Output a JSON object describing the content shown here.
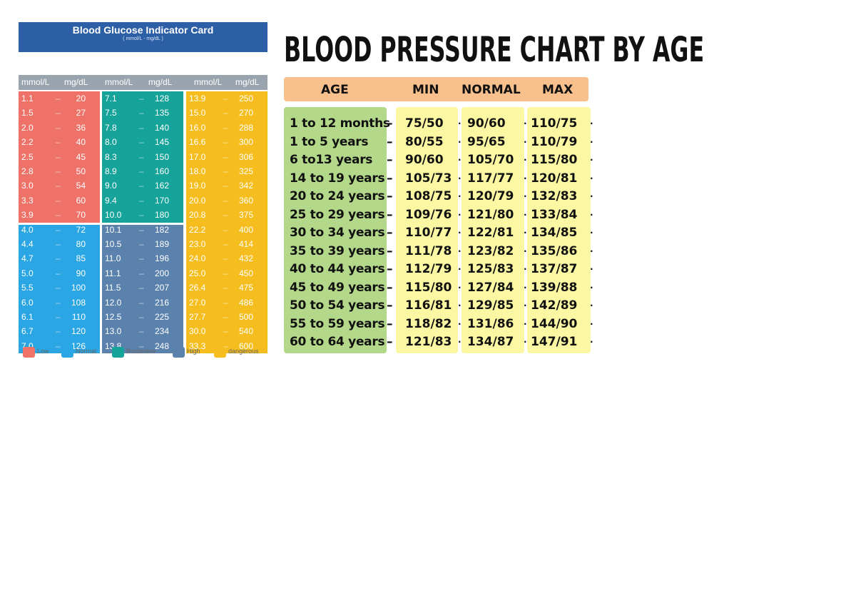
{
  "glucose_card": {
    "title": "Blood Glucose Indicator Card",
    "subtitle": "( mmol/L - mg/dL )",
    "column_headers": [
      "mmol/L",
      "mg/dL",
      "mmol/L",
      "mg/dL",
      "mmol/L",
      "mg/dL"
    ],
    "columns": [
      {
        "blocks": [
          {
            "category": "Low",
            "color": "#ee7268",
            "rows": [
              {
                "mmol": "1.1",
                "mg": "20"
              },
              {
                "mmol": "1.5",
                "mg": "27"
              },
              {
                "mmol": "2.0",
                "mg": "36"
              },
              {
                "mmol": "2.2",
                "mg": "40"
              },
              {
                "mmol": "2.5",
                "mg": "45"
              },
              {
                "mmol": "2.8",
                "mg": "50"
              },
              {
                "mmol": "3.0",
                "mg": "54"
              },
              {
                "mmol": "3.3",
                "mg": "60"
              },
              {
                "mmol": "3.9",
                "mg": "70"
              }
            ]
          },
          {
            "category": "Normal",
            "color": "#2aa6e4",
            "rows": [
              {
                "mmol": "4.0",
                "mg": "72"
              },
              {
                "mmol": "4.4",
                "mg": "80"
              },
              {
                "mmol": "4.7",
                "mg": "85"
              },
              {
                "mmol": "5.0",
                "mg": "90"
              },
              {
                "mmol": "5.5",
                "mg": "100"
              },
              {
                "mmol": "6.0",
                "mg": "108"
              },
              {
                "mmol": "6.1",
                "mg": "110"
              },
              {
                "mmol": "6.7",
                "mg": "120"
              },
              {
                "mmol": "7.0",
                "mg": "126"
              }
            ]
          }
        ]
      },
      {
        "blocks": [
          {
            "category": "Borderline",
            "color": "#16a39a",
            "rows": [
              {
                "mmol": "7.1",
                "mg": "128"
              },
              {
                "mmol": "7.5",
                "mg": "135"
              },
              {
                "mmol": "7.8",
                "mg": "140"
              },
              {
                "mmol": "8.0",
                "mg": "145"
              },
              {
                "mmol": "8.3",
                "mg": "150"
              },
              {
                "mmol": "8.9",
                "mg": "160"
              },
              {
                "mmol": "9.0",
                "mg": "162"
              },
              {
                "mmol": "9.4",
                "mg": "170"
              },
              {
                "mmol": "10.0",
                "mg": "180"
              }
            ]
          },
          {
            "category": "High",
            "color": "#5b82ad",
            "rows": [
              {
                "mmol": "10.1",
                "mg": "182"
              },
              {
                "mmol": "10.5",
                "mg": "189"
              },
              {
                "mmol": "11.0",
                "mg": "196"
              },
              {
                "mmol": "11.1",
                "mg": "200"
              },
              {
                "mmol": "11.5",
                "mg": "207"
              },
              {
                "mmol": "12.0",
                "mg": "216"
              },
              {
                "mmol": "12.5",
                "mg": "225"
              },
              {
                "mmol": "13.0",
                "mg": "234"
              },
              {
                "mmol": "13.8",
                "mg": "248"
              }
            ]
          }
        ]
      },
      {
        "blocks": [
          {
            "category": "dangerous",
            "color": "#f5be1e",
            "rows": [
              {
                "mmol": "13.9",
                "mg": "250"
              },
              {
                "mmol": "15.0",
                "mg": "270"
              },
              {
                "mmol": "16.0",
                "mg": "288"
              },
              {
                "mmol": "16.6",
                "mg": "300"
              },
              {
                "mmol": "17.0",
                "mg": "306"
              },
              {
                "mmol": "18.0",
                "mg": "325"
              },
              {
                "mmol": "19.0",
                "mg": "342"
              },
              {
                "mmol": "20.0",
                "mg": "360"
              },
              {
                "mmol": "20.8",
                "mg": "375"
              },
              {
                "mmol": "22.2",
                "mg": "400"
              },
              {
                "mmol": "23.0",
                "mg": "414"
              },
              {
                "mmol": "24.0",
                "mg": "432"
              },
              {
                "mmol": "25.0",
                "mg": "450"
              },
              {
                "mmol": "26.4",
                "mg": "475"
              },
              {
                "mmol": "27.0",
                "mg": "486"
              },
              {
                "mmol": "27.7",
                "mg": "500"
              },
              {
                "mmol": "30.0",
                "mg": "540"
              },
              {
                "mmol": "33.3",
                "mg": "600"
              }
            ]
          }
        ]
      }
    ],
    "legend": [
      {
        "label": "Low",
        "color": "#ee7268"
      },
      {
        "label": "Normal",
        "color": "#2aa6e4"
      },
      {
        "label": "Borderline",
        "color": "#16a39a"
      },
      {
        "label": "High",
        "color": "#5b82ad"
      },
      {
        "label": "dangerous",
        "color": "#f5be1e"
      }
    ]
  },
  "bp_chart": {
    "title": "BLOOD PRESSURE CHART BY AGE",
    "headers": {
      "age": "AGE",
      "min": "MIN",
      "normal": "NORMAL",
      "max": "MAX"
    },
    "rows": [
      {
        "age": "1 to 12 months",
        "min": "75/50",
        "normal": "90/60",
        "max": "110/75"
      },
      {
        "age": "1 to 5 years",
        "min": "80/55",
        "normal": "95/65",
        "max": "110/79"
      },
      {
        "age": "6 to13 years",
        "min": "90/60",
        "normal": "105/70",
        "max": "115/80"
      },
      {
        "age": "14 to 19 years",
        "min": "105/73",
        "normal": "117/77",
        "max": "120/81"
      },
      {
        "age": "20 to 24 years",
        "min": "108/75",
        "normal": "120/79",
        "max": "132/83"
      },
      {
        "age": "25 to 29 years",
        "min": "109/76",
        "normal": "121/80",
        "max": "133/84"
      },
      {
        "age": "30 to 34 years",
        "min": "110/77",
        "normal": "122/81",
        "max": "134/85"
      },
      {
        "age": "35 to 39 years",
        "min": "111/78",
        "normal": "123/82",
        "max": "135/86"
      },
      {
        "age": "40 to 44 years",
        "min": "112/79",
        "normal": "125/83",
        "max": "137/87"
      },
      {
        "age": "45 to 49 years",
        "min": "115/80",
        "normal": "127/84",
        "max": "139/88"
      },
      {
        "age": "50 to 54 years",
        "min": "116/81",
        "normal": "129/85",
        "max": "142/89"
      },
      {
        "age": "55 to 59 years",
        "min": "118/82",
        "normal": "131/86",
        "max": "144/90"
      },
      {
        "age": "60 to 64 years",
        "min": "121/83",
        "normal": "134/87",
        "max": "147/91"
      }
    ]
  }
}
